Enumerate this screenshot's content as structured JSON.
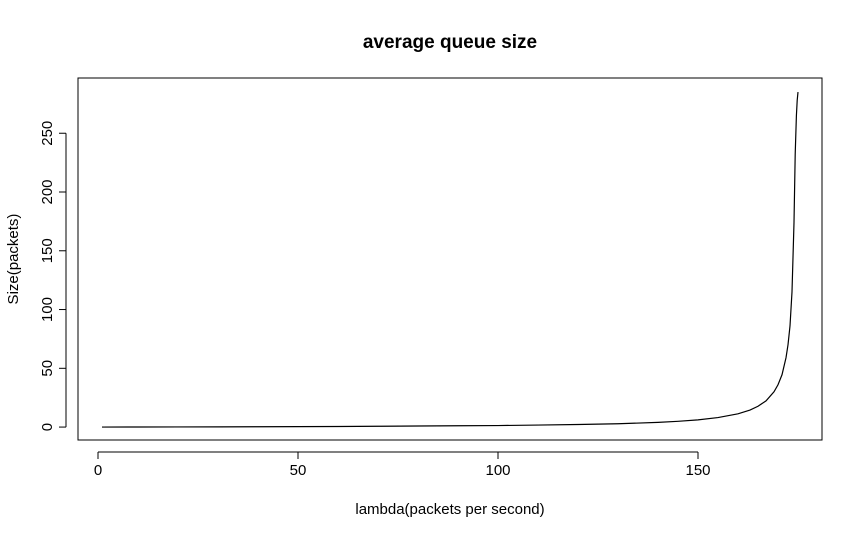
{
  "chart_data": {
    "type": "line",
    "title": "average queue size",
    "xlabel": "lambda(packets per second)",
    "ylabel": "Size(packets)",
    "xlim": [
      -5,
      181
    ],
    "ylim": [
      -11,
      297
    ],
    "xticks": [
      0,
      50,
      100,
      150
    ],
    "yticks": [
      0,
      50,
      100,
      150,
      200,
      250
    ],
    "grid": false,
    "legend": "none",
    "series": [
      {
        "x": [
          1,
          10,
          20,
          30,
          40,
          50,
          60,
          70,
          80,
          90,
          100,
          110,
          120,
          130,
          140,
          145,
          150,
          155,
          160,
          163,
          165,
          167,
          169,
          170,
          171,
          172,
          172.5,
          173,
          173.5,
          174,
          174.3,
          174.6,
          174.8,
          175
        ],
        "y": [
          0.01,
          0.06,
          0.13,
          0.2,
          0.3,
          0.4,
          0.5,
          0.7,
          0.9,
          1.1,
          1.3,
          1.7,
          2.2,
          2.8,
          4,
          4.9,
          6.1,
          8.1,
          11.3,
          14.5,
          17.7,
          22.3,
          30,
          36,
          44.5,
          59,
          70,
          86,
          115,
          174,
          232,
          265,
          278,
          285
        ]
      }
    ]
  }
}
